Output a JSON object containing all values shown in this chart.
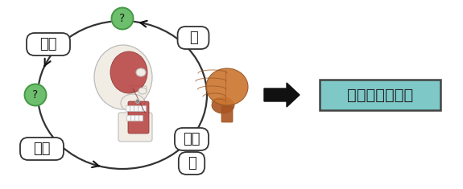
{
  "bg_color": "#ffffff",
  "label_shinkei": "神経",
  "label_nou": "脳",
  "label_soshaku": "咀嚼",
  "label_kinniku": "筋肉",
  "label_hone": "骨",
  "label_memory": "記憶・学習機能",
  "memory_bg": "#7ec8c8",
  "memory_edge": "#444444",
  "question_bg": "#6dbf6d",
  "question_edge": "#449944",
  "arrow_color": "#111111",
  "ellipse_color": "#333333",
  "box_edge": "#333333",
  "box_fc": "#ffffff",
  "font_size_box": 13,
  "font_size_memory": 14,
  "skull_fc": "#f2ede4",
  "skull_ec": "#bbbbbb",
  "muscle_fc": "#b84444",
  "muscle_ec": "#883333",
  "brain_fc": "#cc7733",
  "brain_ec": "#995522",
  "brainstem_fc": "#aa5522"
}
